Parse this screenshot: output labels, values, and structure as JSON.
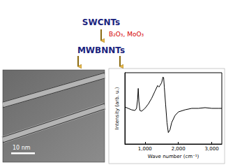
{
  "diagram": {
    "start": "SWCNTs",
    "reagents": "B₂O₃, MoO₃",
    "product": "MWBNNTs"
  },
  "tem_image": {
    "scale_bar": "10 nm"
  },
  "chart_data": {
    "type": "line",
    "x_label": "Wave number (cm⁻¹)",
    "y_label": "Intensity (arb. u.)",
    "x": [
      400,
      500,
      600,
      700,
      750,
      780,
      800,
      820,
      850,
      900,
      1000,
      1100,
      1200,
      1300,
      1380,
      1420,
      1450,
      1500,
      1540,
      1560,
      1580,
      1620,
      1660,
      1700,
      1750,
      1800,
      1900,
      2000,
      2200,
      2400,
      2600,
      2800,
      3000,
      3200,
      3300
    ],
    "values": [
      0.52,
      0.5,
      0.48,
      0.47,
      0.5,
      0.62,
      0.78,
      0.6,
      0.47,
      0.46,
      0.5,
      0.56,
      0.64,
      0.74,
      0.82,
      0.8,
      0.82,
      0.86,
      0.94,
      0.93,
      0.8,
      0.55,
      0.3,
      0.16,
      0.2,
      0.3,
      0.4,
      0.45,
      0.48,
      0.5,
      0.5,
      0.51,
      0.5,
      0.5,
      0.5
    ],
    "color": "#000000",
    "xlim": [
      400,
      3300
    ],
    "xticks": [
      1000,
      2000,
      3000
    ],
    "ylim": [
      0,
      1
    ],
    "yticks": [],
    "tick_labels": "x",
    "grid": false
  }
}
